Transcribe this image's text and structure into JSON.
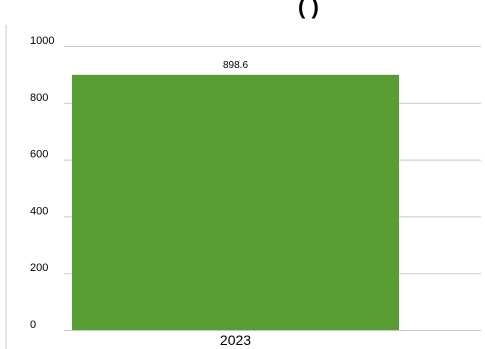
{
  "chart_data": {
    "type": "bar",
    "title_fragment": "(      )",
    "categories": [
      "2023"
    ],
    "values": [
      898.6
    ],
    "data_labels": [
      "898.6"
    ],
    "y_ticks": [
      "0",
      "200",
      "400",
      "600",
      "800",
      "1000"
    ],
    "ylim": [
      0,
      1000
    ],
    "grid": true,
    "bar_color": "#579d32",
    "grid_color": "#c8c8c8"
  }
}
